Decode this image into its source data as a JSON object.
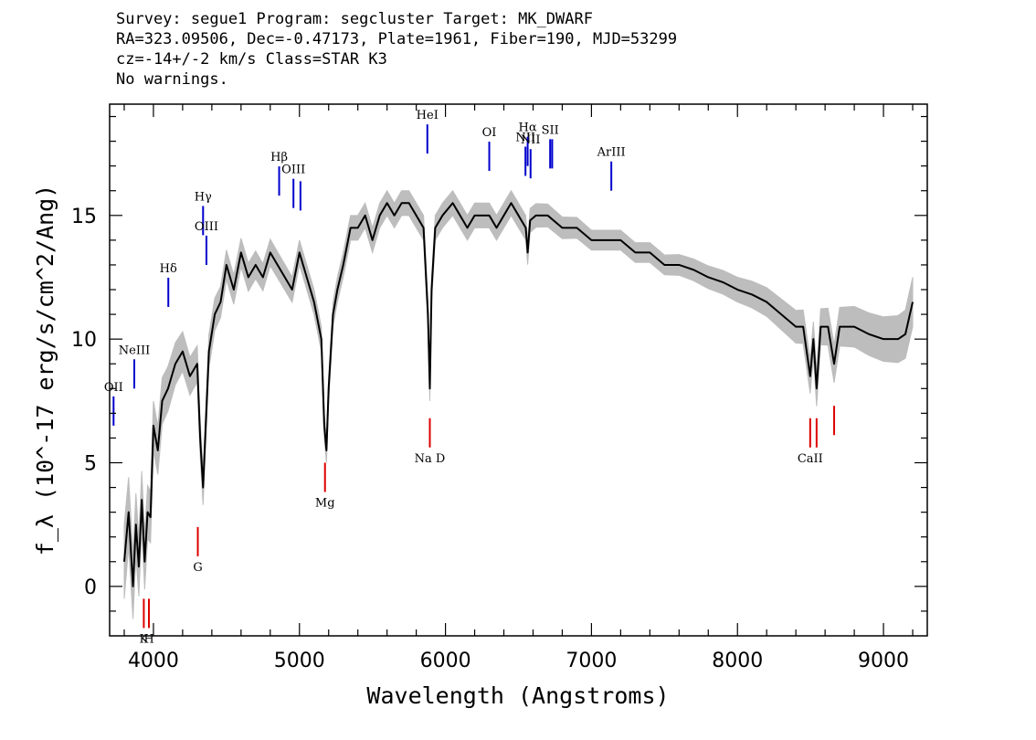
{
  "header": {
    "line1": "Survey: segue1 Program: segcluster Target: MK_DWARF",
    "line2": "RA=323.09506, Dec=-0.47173, Plate=1961, Fiber=190, MJD=53299",
    "line3": "cz=-14+/-2 km/s Class=STAR K3",
    "line4": "No warnings."
  },
  "colors": {
    "flux": "#000000",
    "error": "#bdbdbd",
    "emission": "#0000cc",
    "absorption": "#dd0000"
  },
  "chart_data": {
    "type": "line",
    "title": "",
    "xlabel": "Wavelength (Angstroms)",
    "ylabel": "f_λ (10^-17 erg/s/cm^2/Ang)",
    "xlim": [
      3700,
      9300
    ],
    "ylim": [
      -2,
      19.5
    ],
    "xticks": [
      4000,
      5000,
      6000,
      7000,
      8000,
      9000
    ],
    "xticklabels": [
      "4000",
      "5000",
      "6000",
      "7000",
      "8000",
      "9000"
    ],
    "yticks": [
      0,
      5,
      10,
      15
    ],
    "yticklabels": [
      "0",
      "5",
      "10",
      "15"
    ],
    "grid": false,
    "legend": "none",
    "series": [
      {
        "role": "flux",
        "x": [
          3800,
          3830,
          3860,
          3880,
          3900,
          3920,
          3940,
          3960,
          3980,
          4000,
          4030,
          4060,
          4100,
          4150,
          4200,
          4250,
          4300,
          4320,
          4340,
          4380,
          4420,
          4460,
          4500,
          4550,
          4600,
          4650,
          4700,
          4750,
          4800,
          4850,
          4900,
          4950,
          5000,
          5050,
          5100,
          5150,
          5170,
          5185,
          5200,
          5230,
          5260,
          5300,
          5350,
          5400,
          5450,
          5500,
          5550,
          5600,
          5650,
          5700,
          5750,
          5800,
          5850,
          5880,
          5893,
          5905,
          5930,
          5980,
          6050,
          6100,
          6150,
          6200,
          6250,
          6300,
          6350,
          6400,
          6450,
          6500,
          6550,
          6563,
          6580,
          6620,
          6700,
          6800,
          6900,
          7000,
          7100,
          7200,
          7300,
          7400,
          7500,
          7600,
          7700,
          7800,
          7900,
          8000,
          8100,
          8200,
          8300,
          8400,
          8450,
          8498,
          8520,
          8542,
          8570,
          8620,
          8662,
          8700,
          8800,
          8900,
          9000,
          9100,
          9150,
          9200
        ],
        "y": [
          1.0,
          3.0,
          0.0,
          2.5,
          0.8,
          3.5,
          1.0,
          3.0,
          2.8,
          6.5,
          5.5,
          7.5,
          8.0,
          9.0,
          9.5,
          8.5,
          9.0,
          6.0,
          4.0,
          9.5,
          11.0,
          11.5,
          13.0,
          12.0,
          13.5,
          12.5,
          13.0,
          12.5,
          13.5,
          13.0,
          12.5,
          12.0,
          13.5,
          12.5,
          11.5,
          10.0,
          6.5,
          5.5,
          8.0,
          11.0,
          12.0,
          13.0,
          14.5,
          14.5,
          15.0,
          14.0,
          15.0,
          15.5,
          15.0,
          15.5,
          15.5,
          15.0,
          14.5,
          11.0,
          8.0,
          12.0,
          14.5,
          15.0,
          15.5,
          15.0,
          14.5,
          15.0,
          15.0,
          15.0,
          14.5,
          15.0,
          15.5,
          15.0,
          14.5,
          13.5,
          14.8,
          15.0,
          15.0,
          14.5,
          14.5,
          14.0,
          14.0,
          14.0,
          13.5,
          13.5,
          13.0,
          13.0,
          12.8,
          12.5,
          12.3,
          12.0,
          11.8,
          11.5,
          11.0,
          10.5,
          10.5,
          8.5,
          10.0,
          8.0,
          10.5,
          10.5,
          9.0,
          10.5,
          10.5,
          10.2,
          10.0,
          10.0,
          10.2,
          11.5
        ]
      },
      {
        "role": "error",
        "x": [
          3800,
          3900,
          4000,
          4200,
          4500,
          5000,
          5500,
          6000,
          6500,
          7000,
          7500,
          8000,
          8500,
          9000,
          9200
        ],
        "y": [
          1.5,
          1.2,
          1.0,
          0.8,
          0.6,
          0.5,
          0.5,
          0.5,
          0.5,
          0.4,
          0.4,
          0.5,
          0.7,
          0.9,
          1.0
        ]
      }
    ],
    "lines": [
      {
        "label": "OII",
        "x": 3727,
        "type": "emission",
        "y": 6.5
      },
      {
        "label": "NeIII",
        "x": 3869,
        "type": "emission",
        "y": 8.0
      },
      {
        "label": "Hδ",
        "x": 4102,
        "type": "emission",
        "y": 11.3
      },
      {
        "label": "Hγ",
        "x": 4340,
        "type": "emission",
        "y": 14.2
      },
      {
        "label": "OIII",
        "x": 4363,
        "type": "emission",
        "y": 13.0
      },
      {
        "label": "Hβ",
        "x": 4861,
        "type": "emission",
        "y": 15.8
      },
      {
        "label": "OIII",
        "x": 4959,
        "type": "emission",
        "y": 15.3
      },
      {
        "label": "",
        "x": 5007,
        "type": "emission",
        "y": 15.2
      },
      {
        "label": "HeI",
        "x": 5876,
        "type": "emission",
        "y": 17.5
      },
      {
        "label": "OI",
        "x": 6300,
        "type": "emission",
        "y": 16.8
      },
      {
        "label": "NII",
        "x": 6548,
        "type": "emission",
        "y": 16.6
      },
      {
        "label": "Hα",
        "x": 6563,
        "type": "emission",
        "y": 17.0
      },
      {
        "label": "NII",
        "x": 6583,
        "type": "emission",
        "y": 16.5
      },
      {
        "label": "SII",
        "x": 6717,
        "type": "emission",
        "y": 16.9
      },
      {
        "label": "",
        "x": 6731,
        "type": "emission",
        "y": 16.9
      },
      {
        "label": "ArIII",
        "x": 7136,
        "type": "emission",
        "y": 16.0
      },
      {
        "label": "K",
        "x": 3934,
        "type": "absorption",
        "y": -0.5
      },
      {
        "label": "H",
        "x": 3969,
        "type": "absorption",
        "y": -0.5
      },
      {
        "label": "G",
        "x": 4304,
        "type": "absorption",
        "y": 2.4
      },
      {
        "label": "Mg",
        "x": 5175,
        "type": "absorption",
        "y": 5.0
      },
      {
        "label": "Na D",
        "x": 5893,
        "type": "absorption",
        "y": 6.8
      },
      {
        "label": "CaII",
        "x": 8498,
        "type": "absorption",
        "y": 6.8
      },
      {
        "label": "",
        "x": 8542,
        "type": "absorption",
        "y": 6.8
      },
      {
        "label": "",
        "x": 8662,
        "type": "absorption",
        "y": 7.3
      }
    ]
  }
}
